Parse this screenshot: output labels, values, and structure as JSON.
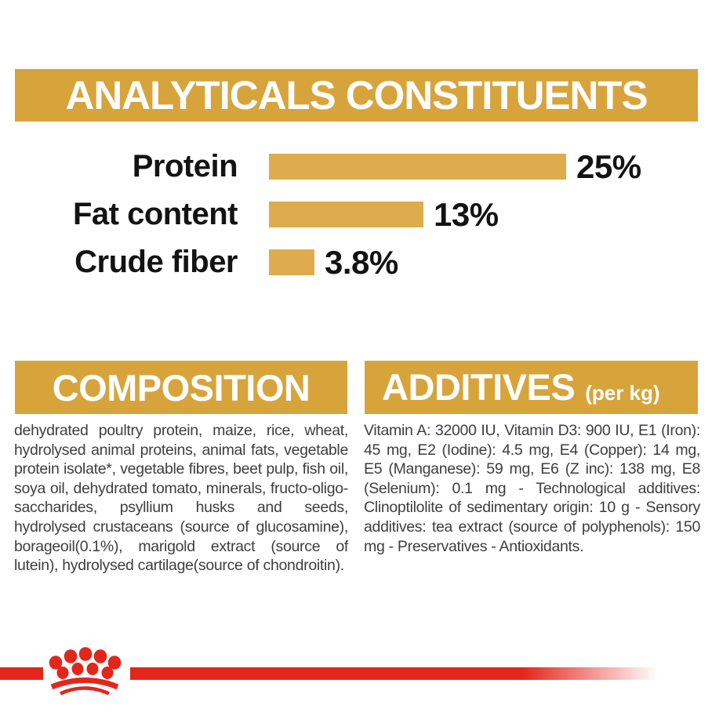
{
  "colors": {
    "gold": "#d7a43c",
    "bar_gold": "#dfac4d",
    "red": "#e3261b",
    "body_text": "#3e3e3d",
    "label_text": "#131313",
    "heading_text": "#ffffff"
  },
  "analyticals": {
    "title": "ANALYTICALS CONSTITUENTS"
  },
  "chart_data": {
    "type": "bar",
    "orientation": "horizontal",
    "title": "ANALYTICALS CONSTITUENTS",
    "categories": [
      "Protein",
      "Fat content",
      "Crude fiber"
    ],
    "values": [
      25,
      13,
      3.8
    ],
    "value_labels": [
      "25%",
      "13%",
      "3.8%"
    ],
    "xlabel": "",
    "ylabel": "",
    "xlim": [
      0,
      25
    ],
    "grid": false,
    "legend": false,
    "bar_color": "#dfac4d"
  },
  "composition": {
    "title": "COMPOSITION",
    "body": "dehydrated poultry protein, maize, rice, wheat, hydrolysed animal proteins, animal fats, vegetable protein isolate*, vegetable fibres, beet pulp, fish oil, soya oil, dehydrated tomato, minerals, fructo-oligo-saccharides, psyllium husks and seeds, hydrolysed crustaceans (source of glucosamine), borageoil(0.1%), marigold extract (source of lutein), hydrolysed cartilage(source of chondroitin)."
  },
  "additives": {
    "title": "ADDITIVES",
    "unit_suffix": "(per kg)",
    "body": "Vitamin A: 32000 IU, Vitamin D3: 900 IU, E1 (Iron): 45 mg, E2 (Iodine): 4.5 mg, E4 (Copper): 14 mg, E5 (Manganese): 59 mg, E6 (Z inc): 138 mg, E8 (Selenium): 0.1 mg - Technological additives: Clinoptilolite of sedimentary origin: 10 g - Sensory additives: tea extract (source of polyphenols): 150 mg - Preservatives - Antioxidants.",
    "body_line_count": 8
  },
  "icons": {
    "brand_logo": "royal-canin-crown"
  }
}
